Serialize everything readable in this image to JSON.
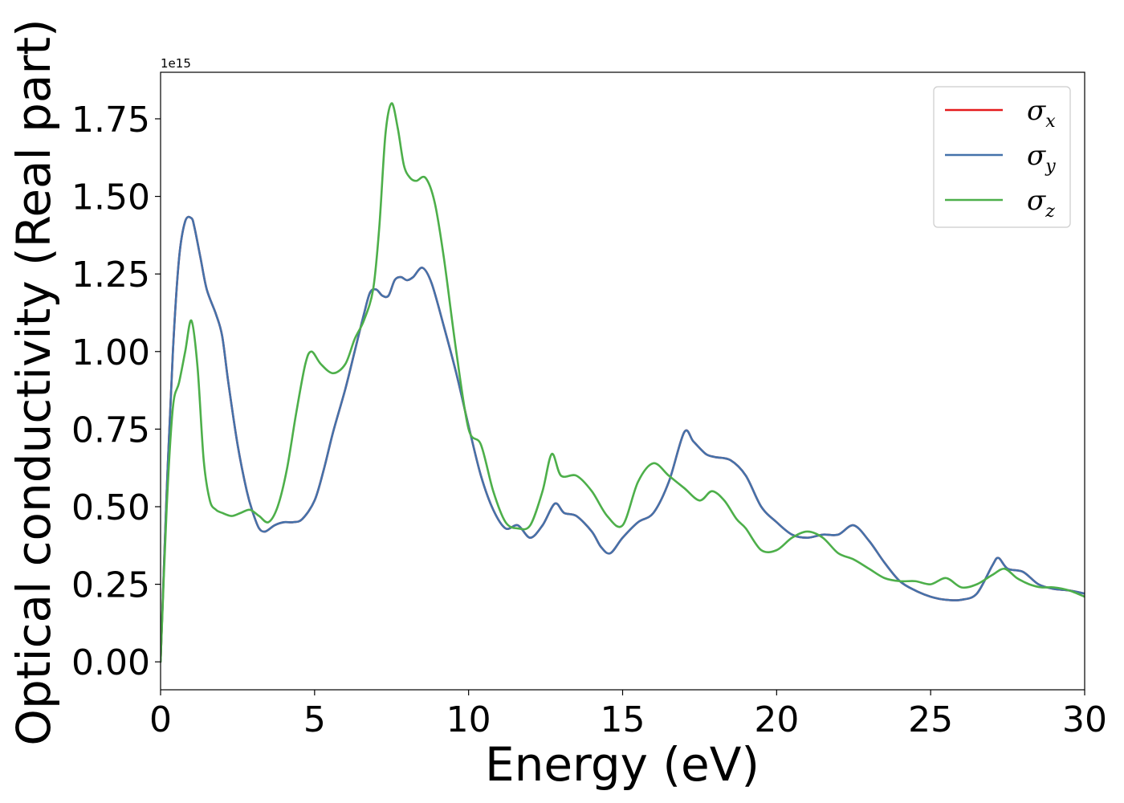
{
  "chart_data": {
    "type": "line",
    "title": "",
    "xlabel": "Energy (eV)",
    "ylabel": "Optical conductivity (Real part)",
    "y_offset_label": "1e15",
    "xlim": [
      0,
      30
    ],
    "ylim": [
      -0.09,
      1.9
    ],
    "xticks": [
      0,
      5,
      10,
      15,
      20,
      25,
      30
    ],
    "xtick_labels": [
      "0",
      "5",
      "10",
      "15",
      "20",
      "25",
      "30"
    ],
    "yticks": [
      0,
      0.25,
      0.5,
      0.75,
      1.0,
      1.25,
      1.5,
      1.75
    ],
    "ytick_labels": [
      "0.00",
      "0.25",
      "0.50",
      "0.75",
      "1.00",
      "1.25",
      "1.50",
      "1.75"
    ],
    "grid": false,
    "legend_position": "top-right",
    "series": [
      {
        "name": "σx",
        "symbol": "σ",
        "subscript": "x",
        "color": "#e41a1c",
        "x": [
          0,
          0.2,
          0.4,
          0.6,
          0.8,
          1.0,
          1.1,
          1.3,
          1.5,
          1.8,
          2.0,
          2.2,
          2.5,
          2.8,
          3.0,
          3.2,
          3.4,
          3.7,
          4.0,
          4.3,
          4.6,
          5.0,
          5.3,
          5.6,
          6.0,
          6.3,
          6.6,
          6.8,
          7.0,
          7.2,
          7.4,
          7.6,
          7.8,
          8.0,
          8.2,
          8.5,
          8.8,
          9.2,
          9.6,
          10.0,
          10.4,
          10.8,
          11.2,
          11.6,
          12.0,
          12.4,
          12.8,
          13.1,
          13.5,
          14.0,
          14.3,
          14.6,
          15.0,
          15.5,
          16.0,
          16.5,
          17.0,
          17.3,
          17.7,
          18.0,
          18.5,
          19.0,
          19.5,
          20.0,
          20.5,
          21.0,
          21.5,
          22.0,
          22.5,
          23.0,
          23.5,
          24.0,
          24.5,
          25.0,
          25.5,
          26.0,
          26.5,
          27.0,
          27.2,
          27.5,
          28.0,
          28.5,
          29.0,
          29.5,
          30.0
        ],
        "y": [
          0,
          0.55,
          1.0,
          1.3,
          1.42,
          1.43,
          1.4,
          1.3,
          1.2,
          1.12,
          1.05,
          0.9,
          0.7,
          0.55,
          0.48,
          0.43,
          0.42,
          0.44,
          0.45,
          0.45,
          0.46,
          0.52,
          0.62,
          0.74,
          0.88,
          1.0,
          1.12,
          1.19,
          1.2,
          1.18,
          1.18,
          1.23,
          1.24,
          1.23,
          1.24,
          1.27,
          1.22,
          1.08,
          0.93,
          0.76,
          0.6,
          0.49,
          0.43,
          0.44,
          0.4,
          0.44,
          0.51,
          0.48,
          0.47,
          0.42,
          0.37,
          0.35,
          0.4,
          0.45,
          0.48,
          0.58,
          0.74,
          0.71,
          0.67,
          0.66,
          0.65,
          0.6,
          0.5,
          0.45,
          0.41,
          0.4,
          0.41,
          0.41,
          0.44,
          0.39,
          0.32,
          0.26,
          0.23,
          0.21,
          0.2,
          0.2,
          0.22,
          0.31,
          0.335,
          0.3,
          0.29,
          0.25,
          0.235,
          0.23,
          0.22
        ]
      },
      {
        "name": "σy",
        "symbol": "σ",
        "subscript": "y",
        "color": "#4472aa",
        "x": [
          0,
          0.2,
          0.4,
          0.6,
          0.8,
          1.0,
          1.1,
          1.3,
          1.5,
          1.8,
          2.0,
          2.2,
          2.5,
          2.8,
          3.0,
          3.2,
          3.4,
          3.7,
          4.0,
          4.3,
          4.6,
          5.0,
          5.3,
          5.6,
          6.0,
          6.3,
          6.6,
          6.8,
          7.0,
          7.2,
          7.4,
          7.6,
          7.8,
          8.0,
          8.2,
          8.5,
          8.8,
          9.2,
          9.6,
          10.0,
          10.4,
          10.8,
          11.2,
          11.6,
          12.0,
          12.4,
          12.8,
          13.1,
          13.5,
          14.0,
          14.3,
          14.6,
          15.0,
          15.5,
          16.0,
          16.5,
          17.0,
          17.3,
          17.7,
          18.0,
          18.5,
          19.0,
          19.5,
          20.0,
          20.5,
          21.0,
          21.5,
          22.0,
          22.5,
          23.0,
          23.5,
          24.0,
          24.5,
          25.0,
          25.5,
          26.0,
          26.5,
          27.0,
          27.2,
          27.5,
          28.0,
          28.5,
          29.0,
          29.5,
          30.0
        ],
        "y": [
          0,
          0.55,
          1.0,
          1.3,
          1.42,
          1.43,
          1.4,
          1.3,
          1.2,
          1.12,
          1.05,
          0.9,
          0.7,
          0.55,
          0.48,
          0.43,
          0.42,
          0.44,
          0.45,
          0.45,
          0.46,
          0.52,
          0.62,
          0.74,
          0.88,
          1.0,
          1.12,
          1.19,
          1.2,
          1.18,
          1.18,
          1.23,
          1.24,
          1.23,
          1.24,
          1.27,
          1.22,
          1.08,
          0.93,
          0.76,
          0.6,
          0.49,
          0.43,
          0.44,
          0.4,
          0.44,
          0.51,
          0.48,
          0.47,
          0.42,
          0.37,
          0.35,
          0.4,
          0.45,
          0.48,
          0.58,
          0.74,
          0.71,
          0.67,
          0.66,
          0.65,
          0.6,
          0.5,
          0.45,
          0.41,
          0.4,
          0.41,
          0.41,
          0.44,
          0.39,
          0.32,
          0.26,
          0.23,
          0.21,
          0.2,
          0.2,
          0.22,
          0.31,
          0.335,
          0.3,
          0.29,
          0.25,
          0.235,
          0.23,
          0.22
        ]
      },
      {
        "name": "σz",
        "symbol": "σ",
        "subscript": "z",
        "color": "#4daf4a",
        "x": [
          0,
          0.2,
          0.4,
          0.6,
          0.8,
          1.0,
          1.2,
          1.4,
          1.6,
          1.8,
          2.0,
          2.3,
          2.6,
          2.9,
          3.2,
          3.5,
          3.8,
          4.1,
          4.4,
          4.7,
          4.9,
          5.2,
          5.6,
          6.0,
          6.3,
          6.6,
          6.9,
          7.1,
          7.3,
          7.5,
          7.7,
          7.9,
          8.1,
          8.3,
          8.6,
          8.9,
          9.2,
          9.6,
          10.0,
          10.4,
          10.8,
          11.2,
          11.6,
          12.0,
          12.4,
          12.7,
          13.0,
          13.5,
          14.0,
          14.5,
          15.0,
          15.5,
          16.0,
          16.5,
          17.0,
          17.5,
          17.9,
          18.3,
          18.7,
          19.0,
          19.5,
          20.0,
          20.5,
          21.0,
          21.5,
          22.0,
          22.5,
          23.0,
          23.5,
          24.0,
          24.5,
          25.0,
          25.5,
          26.0,
          26.5,
          27.0,
          27.4,
          27.8,
          28.2,
          28.6,
          29.0,
          29.5,
          30.0
        ],
        "y": [
          0,
          0.5,
          0.82,
          0.9,
          1.0,
          1.1,
          0.95,
          0.65,
          0.52,
          0.49,
          0.48,
          0.47,
          0.48,
          0.49,
          0.47,
          0.45,
          0.5,
          0.62,
          0.8,
          0.96,
          1.0,
          0.96,
          0.93,
          0.96,
          1.04,
          1.1,
          1.2,
          1.4,
          1.7,
          1.8,
          1.72,
          1.6,
          1.56,
          1.55,
          1.56,
          1.48,
          1.3,
          1.0,
          0.75,
          0.7,
          0.55,
          0.45,
          0.43,
          0.44,
          0.55,
          0.67,
          0.6,
          0.6,
          0.55,
          0.47,
          0.44,
          0.58,
          0.64,
          0.6,
          0.56,
          0.52,
          0.55,
          0.52,
          0.46,
          0.43,
          0.36,
          0.36,
          0.4,
          0.42,
          0.4,
          0.35,
          0.33,
          0.3,
          0.27,
          0.26,
          0.26,
          0.25,
          0.27,
          0.24,
          0.25,
          0.28,
          0.3,
          0.27,
          0.25,
          0.24,
          0.24,
          0.23,
          0.21
        ]
      }
    ]
  }
}
